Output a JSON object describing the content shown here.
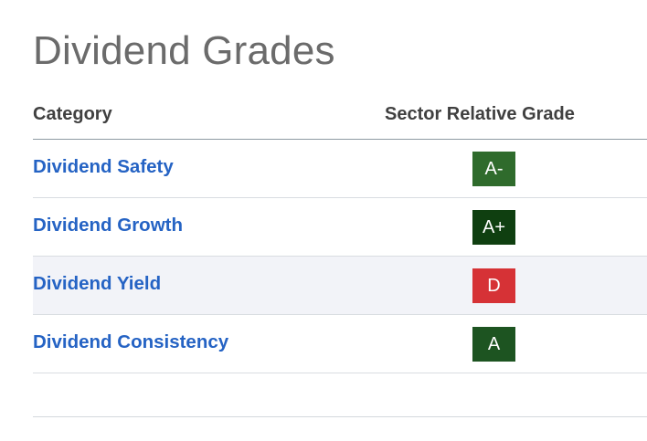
{
  "title": "Dividend Grades",
  "table": {
    "columns": {
      "category": "Category",
      "grade": "Sector Relative Grade"
    },
    "rows": [
      {
        "category": "Dividend Safety",
        "grade": "A-",
        "grade_color": "#2f6b2c"
      },
      {
        "category": "Dividend Growth",
        "grade": "A+",
        "grade_color": "#0f3f10"
      },
      {
        "category": "Dividend Yield",
        "grade": "D",
        "grade_color": "#d63236"
      },
      {
        "category": "Dividend Consistency",
        "grade": "A",
        "grade_color": "#1d5421"
      }
    ]
  },
  "colors": {
    "link": "#2563c4",
    "title": "#6b6b6b",
    "header_text": "#404040",
    "shaded_row": "#f2f3f8"
  }
}
